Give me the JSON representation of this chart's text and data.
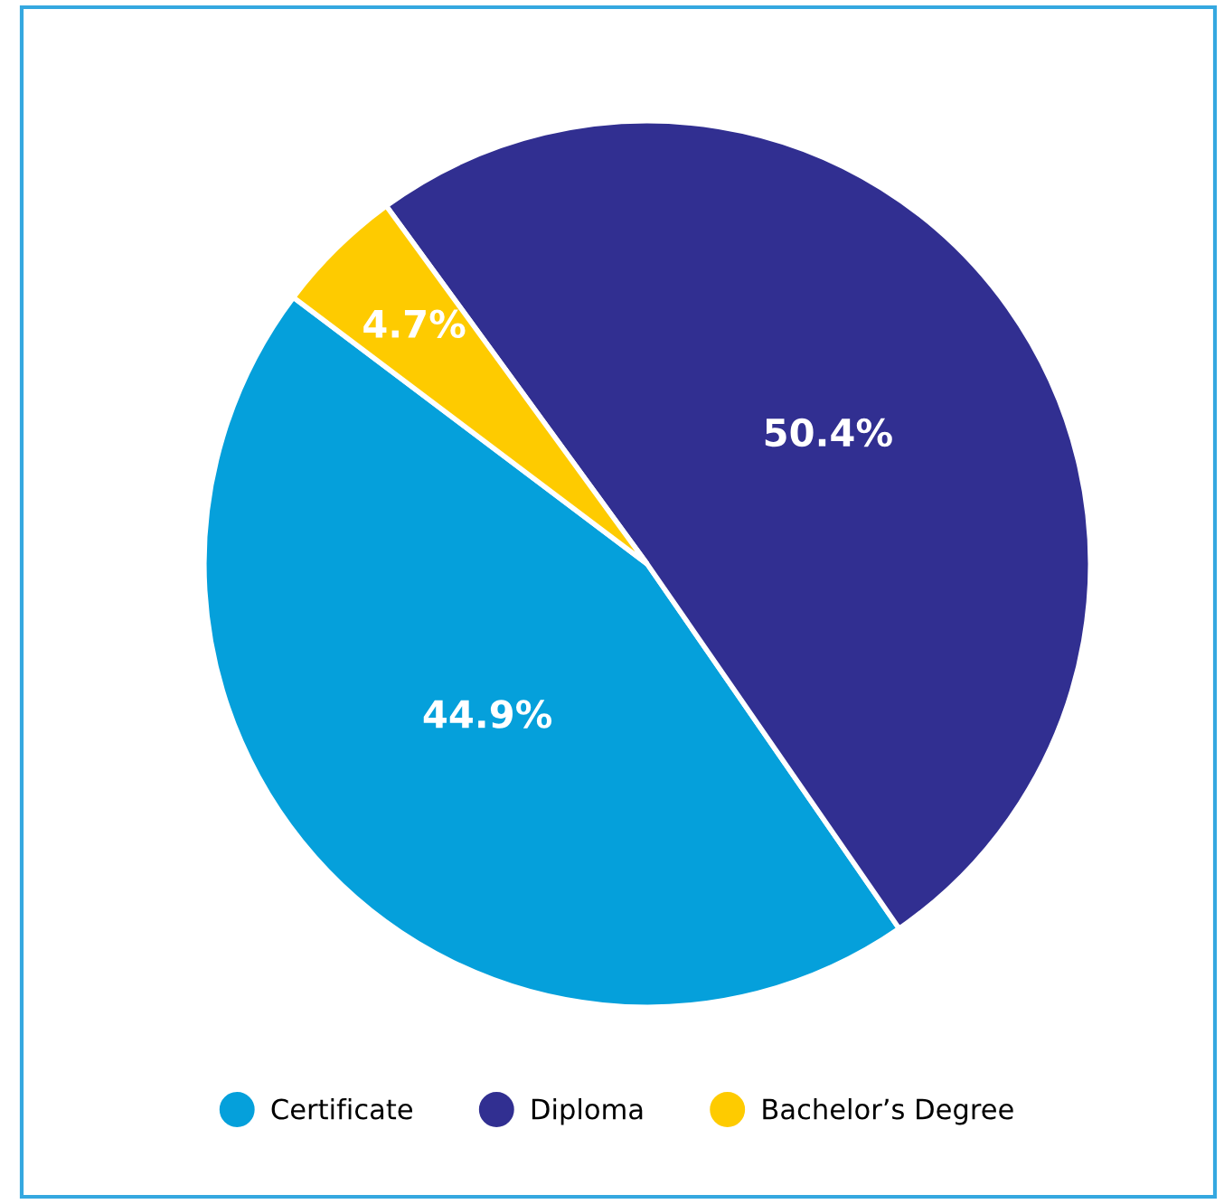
{
  "chart_data": {
    "type": "pie",
    "categories": [
      "Certificate",
      "Diploma",
      "Bachelor’s Degree"
    ],
    "values": [
      44.9,
      50.4,
      4.7
    ],
    "colors": [
      "#05a0db",
      "#312f91",
      "#fecb00"
    ],
    "value_labels": [
      "44.9%",
      "50.4%",
      "4.7%"
    ],
    "legend": "bottom"
  }
}
